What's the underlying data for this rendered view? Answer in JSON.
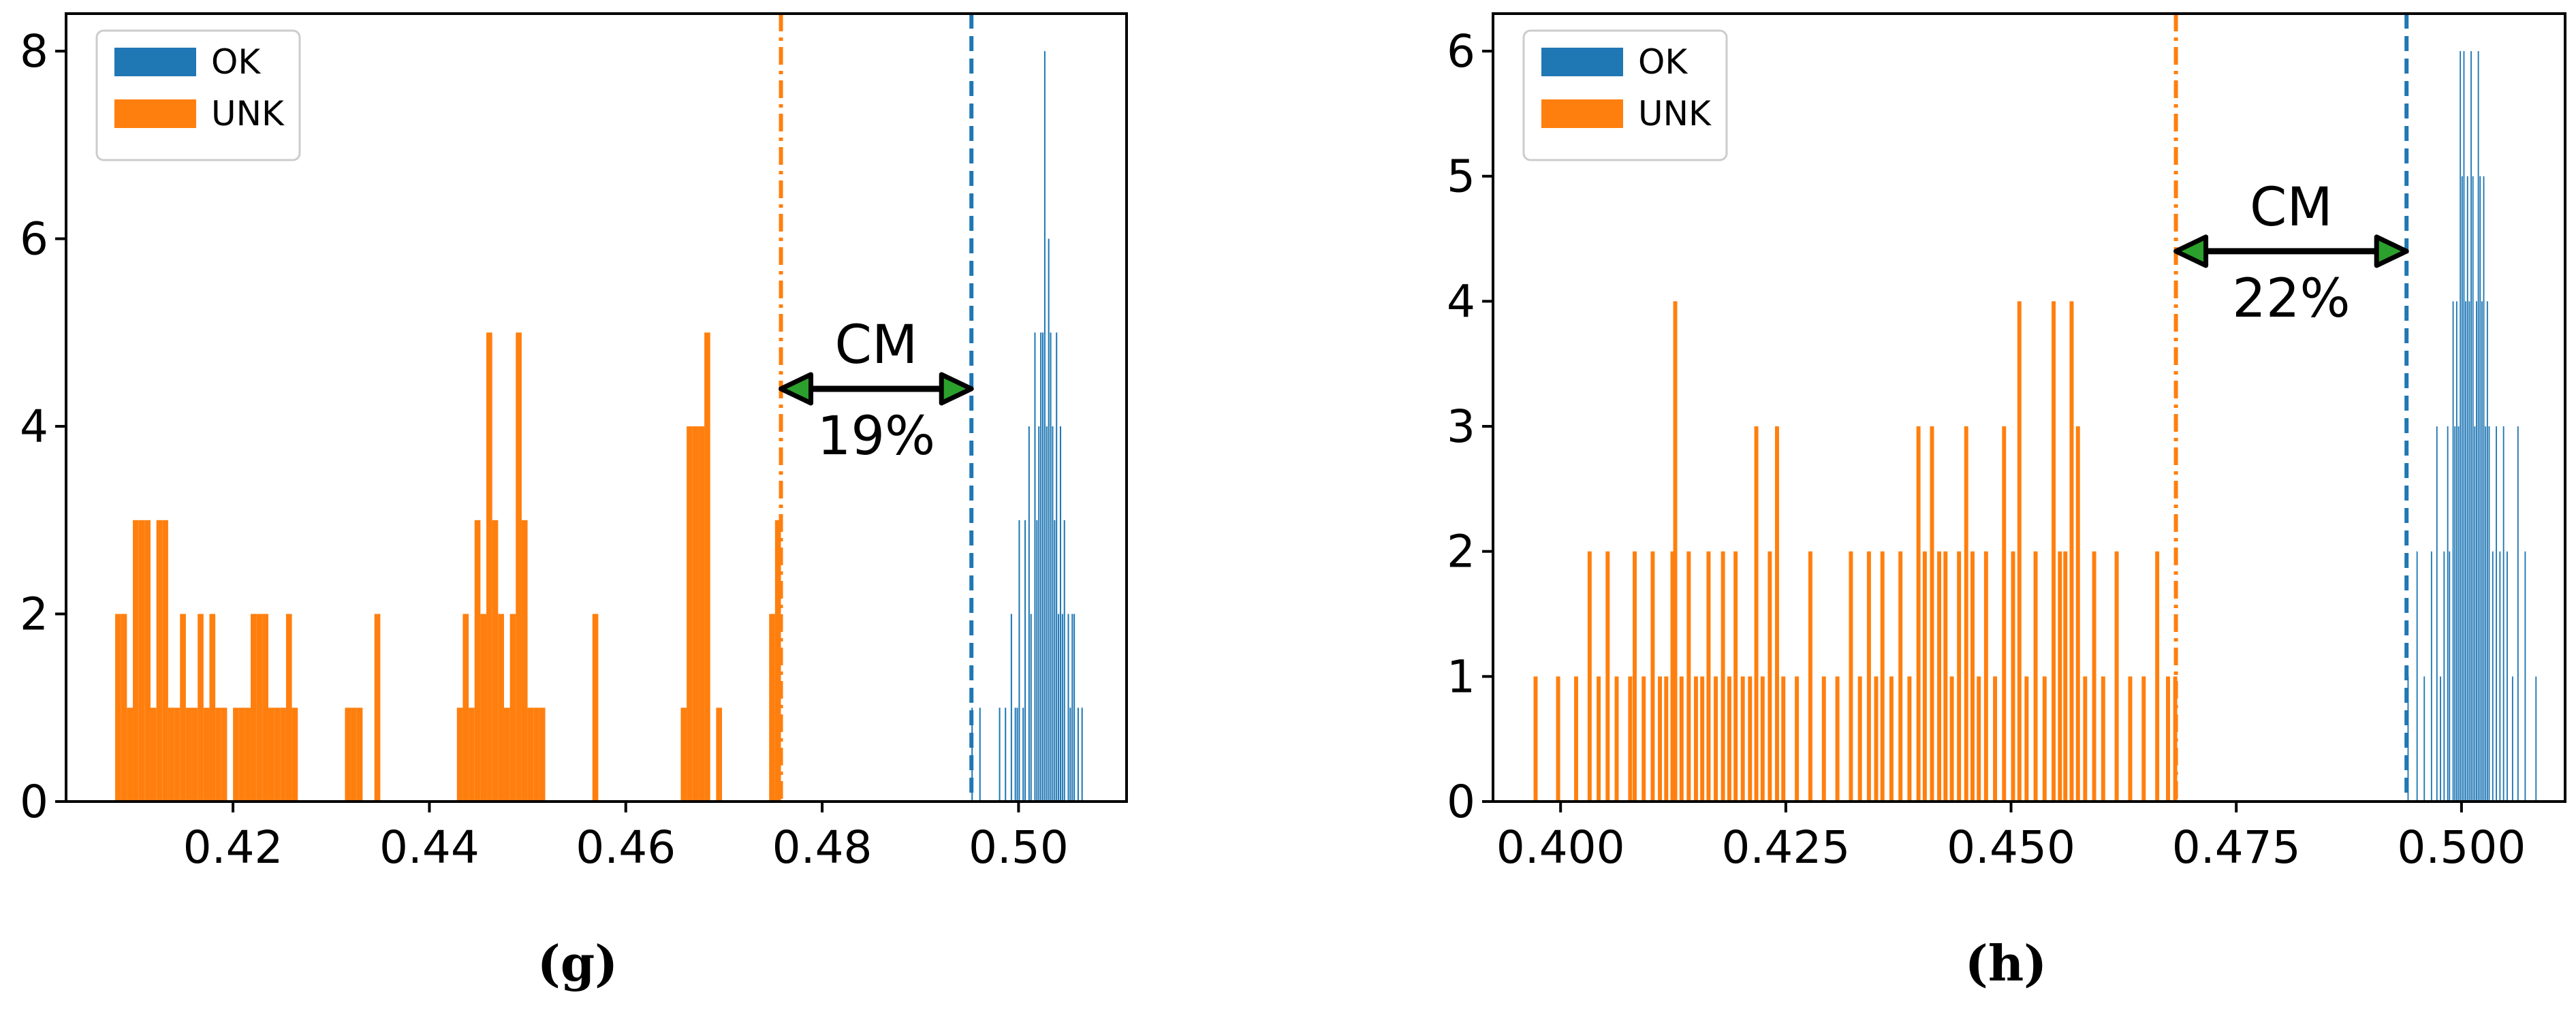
{
  "colors": {
    "ok": "#1f77b4",
    "unk": "#ff7f0e",
    "arrow": "#000000",
    "arrow_head_fill": "#2ca02c"
  },
  "chart_data": [
    {
      "type": "histogram",
      "panel_label": "(g)",
      "xlim": [
        0.403,
        0.511
      ],
      "ylim": [
        0,
        8.4
      ],
      "xticks": [
        0.42,
        0.44,
        0.46,
        0.48,
        0.5
      ],
      "xtick_labels": [
        "0.42",
        "0.44",
        "0.46",
        "0.48",
        "0.50"
      ],
      "yticks": [
        0,
        2,
        4,
        6,
        8
      ],
      "ytick_labels": [
        "0",
        "2",
        "4",
        "6",
        "8"
      ],
      "legend": [
        {
          "label": "OK",
          "series": "ok"
        },
        {
          "label": "UNK",
          "series": "unk"
        }
      ],
      "legend_position": "top-left",
      "threshold_lines": [
        {
          "series": "unk",
          "x": 0.4758,
          "style": "dash-dot"
        },
        {
          "series": "ok",
          "x": 0.4952,
          "style": "dashed"
        }
      ],
      "annotation": {
        "title": "CM",
        "value": "19%",
        "x_from": 0.4758,
        "x_to": 0.4952,
        "y": 4.4
      },
      "series": [
        {
          "name": "UNK",
          "key": "unk",
          "bin_width": 0.0006,
          "bins": [
            [
              0.408,
              2
            ],
            [
              0.4086,
              2
            ],
            [
              0.4092,
              1
            ],
            [
              0.4098,
              3
            ],
            [
              0.4104,
              3
            ],
            [
              0.411,
              3
            ],
            [
              0.4116,
              1
            ],
            [
              0.4122,
              3
            ],
            [
              0.4128,
              3
            ],
            [
              0.4134,
              1
            ],
            [
              0.414,
              1
            ],
            [
              0.4146,
              2
            ],
            [
              0.4152,
              1
            ],
            [
              0.4158,
              1
            ],
            [
              0.4164,
              2
            ],
            [
              0.417,
              1
            ],
            [
              0.4176,
              2
            ],
            [
              0.4182,
              1
            ],
            [
              0.4188,
              1
            ],
            [
              0.42,
              1
            ],
            [
              0.4206,
              1
            ],
            [
              0.4212,
              1
            ],
            [
              0.4218,
              2
            ],
            [
              0.4224,
              2
            ],
            [
              0.423,
              2
            ],
            [
              0.4236,
              1
            ],
            [
              0.4242,
              1
            ],
            [
              0.4248,
              1
            ],
            [
              0.4254,
              2
            ],
            [
              0.426,
              1
            ],
            [
              0.4314,
              1
            ],
            [
              0.432,
              1
            ],
            [
              0.4326,
              1
            ],
            [
              0.4344,
              2
            ],
            [
              0.4428,
              1
            ],
            [
              0.4434,
              2
            ],
            [
              0.444,
              1
            ],
            [
              0.4446,
              3
            ],
            [
              0.4452,
              2
            ],
            [
              0.4458,
              5
            ],
            [
              0.4464,
              3
            ],
            [
              0.447,
              2
            ],
            [
              0.4476,
              1
            ],
            [
              0.4482,
              2
            ],
            [
              0.4488,
              5
            ],
            [
              0.4494,
              3
            ],
            [
              0.45,
              1
            ],
            [
              0.4506,
              1
            ],
            [
              0.4512,
              1
            ],
            [
              0.4566,
              2
            ],
            [
              0.4656,
              1
            ],
            [
              0.4662,
              4
            ],
            [
              0.4668,
              4
            ],
            [
              0.4674,
              4
            ],
            [
              0.468,
              5
            ],
            [
              0.4692,
              1
            ],
            [
              0.4746,
              2
            ],
            [
              0.4752,
              3
            ]
          ]
        },
        {
          "name": "OK",
          "key": "ok",
          "bin_width": 0.00014,
          "bins": [
            [
              0.4952,
              1
            ],
            [
              0.496,
              1
            ],
            [
              0.498,
              1
            ],
            [
              0.4986,
              1
            ],
            [
              0.4992,
              2
            ],
            [
              0.4996,
              1
            ],
            [
              0.4998,
              1
            ],
            [
              0.5,
              3
            ],
            [
              0.5004,
              1
            ],
            [
              0.5006,
              3
            ],
            [
              0.501,
              4
            ],
            [
              0.5012,
              2
            ],
            [
              0.5016,
              5
            ],
            [
              0.5018,
              3
            ],
            [
              0.502,
              4
            ],
            [
              0.5022,
              5
            ],
            [
              0.5024,
              5
            ],
            [
              0.5026,
              8
            ],
            [
              0.5028,
              4
            ],
            [
              0.503,
              6
            ],
            [
              0.5032,
              5
            ],
            [
              0.5034,
              4
            ],
            [
              0.5036,
              3
            ],
            [
              0.5038,
              5
            ],
            [
              0.504,
              2
            ],
            [
              0.5042,
              4
            ],
            [
              0.5044,
              2
            ],
            [
              0.5046,
              3
            ],
            [
              0.505,
              2
            ],
            [
              0.5052,
              1
            ],
            [
              0.5054,
              2
            ],
            [
              0.5056,
              2
            ],
            [
              0.506,
              1
            ],
            [
              0.5064,
              1
            ]
          ]
        }
      ]
    },
    {
      "type": "histogram",
      "panel_label": "(h)",
      "xlim": [
        0.3925,
        0.5115
      ],
      "ylim": [
        0,
        6.3
      ],
      "xticks": [
        0.4,
        0.425,
        0.45,
        0.475,
        0.5
      ],
      "xtick_labels": [
        "0.400",
        "0.425",
        "0.450",
        "0.475",
        "0.500"
      ],
      "yticks": [
        0,
        1,
        2,
        3,
        4,
        5,
        6
      ],
      "ytick_labels": [
        "0",
        "1",
        "2",
        "3",
        "4",
        "5",
        "6"
      ],
      "legend": [
        {
          "label": "OK",
          "series": "ok"
        },
        {
          "label": "UNK",
          "series": "unk"
        }
      ],
      "legend_position": "top-left",
      "threshold_lines": [
        {
          "series": "unk",
          "x": 0.4683,
          "style": "dash-dot"
        },
        {
          "series": "ok",
          "x": 0.4939,
          "style": "dashed"
        }
      ],
      "annotation": {
        "title": "CM",
        "value": "22%",
        "x_from": 0.4683,
        "x_to": 0.4939,
        "y": 4.4
      },
      "series": [
        {
          "name": "UNK",
          "key": "unk",
          "bin_width": 0.00045,
          "bins": [
            [
              0.397,
              1
            ],
            [
              0.3995,
              1
            ],
            [
              0.4015,
              1
            ],
            [
              0.403,
              2
            ],
            [
              0.404,
              1
            ],
            [
              0.405,
              2
            ],
            [
              0.406,
              1
            ],
            [
              0.4075,
              1
            ],
            [
              0.408,
              2
            ],
            [
              0.409,
              1
            ],
            [
              0.41,
              2
            ],
            [
              0.4108,
              1
            ],
            [
              0.4115,
              1
            ],
            [
              0.4122,
              2
            ],
            [
              0.4125,
              4
            ],
            [
              0.4132,
              1
            ],
            [
              0.414,
              2
            ],
            [
              0.4148,
              1
            ],
            [
              0.4155,
              1
            ],
            [
              0.4162,
              2
            ],
            [
              0.417,
              1
            ],
            [
              0.4178,
              2
            ],
            [
              0.4185,
              1
            ],
            [
              0.4192,
              2
            ],
            [
              0.42,
              1
            ],
            [
              0.4208,
              1
            ],
            [
              0.4215,
              3
            ],
            [
              0.4222,
              1
            ],
            [
              0.423,
              2
            ],
            [
              0.4238,
              3
            ],
            [
              0.4245,
              1
            ],
            [
              0.426,
              1
            ],
            [
              0.4275,
              2
            ],
            [
              0.429,
              1
            ],
            [
              0.4305,
              1
            ],
            [
              0.432,
              2
            ],
            [
              0.433,
              1
            ],
            [
              0.434,
              2
            ],
            [
              0.4348,
              1
            ],
            [
              0.4355,
              2
            ],
            [
              0.4365,
              1
            ],
            [
              0.4375,
              2
            ],
            [
              0.4385,
              1
            ],
            [
              0.4395,
              3
            ],
            [
              0.4402,
              2
            ],
            [
              0.441,
              3
            ],
            [
              0.4418,
              2
            ],
            [
              0.4425,
              2
            ],
            [
              0.4432,
              1
            ],
            [
              0.444,
              2
            ],
            [
              0.4448,
              3
            ],
            [
              0.4455,
              2
            ],
            [
              0.4462,
              1
            ],
            [
              0.447,
              2
            ],
            [
              0.448,
              1
            ],
            [
              0.449,
              3
            ],
            [
              0.45,
              2
            ],
            [
              0.4507,
              4
            ],
            [
              0.4515,
              1
            ],
            [
              0.4525,
              2
            ],
            [
              0.4535,
              1
            ],
            [
              0.4545,
              4
            ],
            [
              0.4552,
              2
            ],
            [
              0.4558,
              2
            ],
            [
              0.4565,
              4
            ],
            [
              0.4572,
              3
            ],
            [
              0.458,
              1
            ],
            [
              0.459,
              2
            ],
            [
              0.46,
              1
            ],
            [
              0.4615,
              2
            ],
            [
              0.463,
              1
            ],
            [
              0.4645,
              1
            ],
            [
              0.466,
              2
            ],
            [
              0.4672,
              1
            ],
            [
              0.468,
              1
            ]
          ]
        },
        {
          "name": "OK",
          "key": "ok",
          "bin_width": 0.00014,
          "bins": [
            [
              0.494,
              1
            ],
            [
              0.495,
              2
            ],
            [
              0.4958,
              1
            ],
            [
              0.4966,
              2
            ],
            [
              0.4972,
              3
            ],
            [
              0.4976,
              1
            ],
            [
              0.498,
              2
            ],
            [
              0.4984,
              3
            ],
            [
              0.4986,
              2
            ],
            [
              0.499,
              4
            ],
            [
              0.4992,
              3
            ],
            [
              0.4994,
              4
            ],
            [
              0.4996,
              3
            ],
            [
              0.4998,
              6
            ],
            [
              0.5,
              5
            ],
            [
              0.5002,
              6
            ],
            [
              0.5004,
              4
            ],
            [
              0.5006,
              5
            ],
            [
              0.5008,
              4
            ],
            [
              0.501,
              6
            ],
            [
              0.5012,
              5
            ],
            [
              0.5014,
              3
            ],
            [
              0.5016,
              4
            ],
            [
              0.5018,
              6
            ],
            [
              0.502,
              5
            ],
            [
              0.5022,
              4
            ],
            [
              0.5024,
              5
            ],
            [
              0.5026,
              3
            ],
            [
              0.5028,
              4
            ],
            [
              0.503,
              3
            ],
            [
              0.5034,
              2
            ],
            [
              0.5038,
              3
            ],
            [
              0.5042,
              2
            ],
            [
              0.5046,
              3
            ],
            [
              0.505,
              2
            ],
            [
              0.5056,
              1
            ],
            [
              0.5062,
              3
            ],
            [
              0.507,
              2
            ],
            [
              0.5082,
              1
            ]
          ]
        }
      ]
    }
  ]
}
